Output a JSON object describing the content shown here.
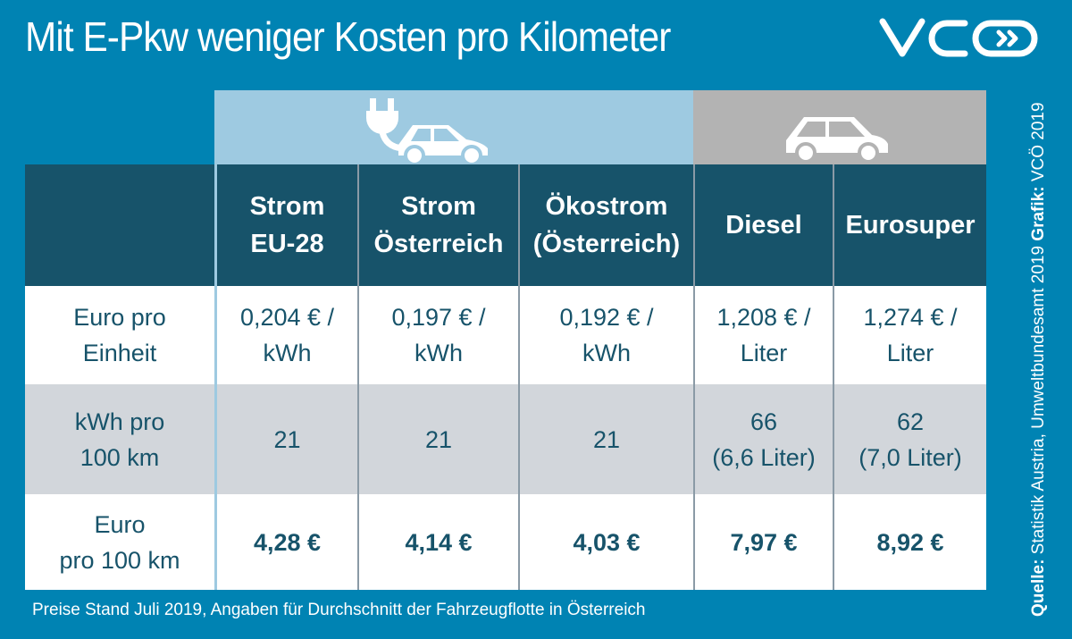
{
  "title": "Mit E-Pkw weniger Kosten pro Kilometer",
  "logo_text": "VCÖ",
  "icons": {
    "electric": "electric-car-plug-icon",
    "fuel": "car-icon"
  },
  "colors": {
    "background": "#0083b3",
    "header": "#17536a",
    "electric_group": "#9ecae1",
    "fuel_group": "#b3b3b3",
    "row_alt": "#d2d6db"
  },
  "chart_data": {
    "type": "table",
    "columns": [
      "",
      "Strom\nEU-28",
      "Strom\nÖsterreich",
      "Ökostrom\n(Österreich)",
      "Diesel",
      "Eurosuper"
    ],
    "groups": [
      {
        "type": "electric",
        "columns": [
          "Strom EU-28",
          "Strom Österreich",
          "Ökostrom (Österreich)"
        ]
      },
      {
        "type": "fuel",
        "columns": [
          "Diesel",
          "Eurosuper"
        ]
      }
    ],
    "rows": [
      [
        "Euro pro\nEinheit",
        "0,204 € /\nkWh",
        "0,197 € /\nkWh",
        "0,192 € /\nkWh",
        "1,208 € /\nLiter",
        "1,274 € /\nLiter"
      ],
      [
        "kWh pro\n100 km",
        "21",
        "21",
        "21",
        "66\n(6,6 Liter)",
        "62\n(7,0 Liter)"
      ],
      [
        "Euro\npro 100 km",
        "4,28 €",
        "4,14 €",
        "4,03 €",
        "7,97 €",
        "8,92 €"
      ]
    ]
  },
  "footer": "Preise Stand Juli 2019, Angaben für Durchschnitt der Fahrzeugflotte in Österreich",
  "source": {
    "label": "Quelle:",
    "text": " Statistik Austria, Umweltbundesamt 2019 ",
    "graphic_label": "Grafik:",
    "graphic_text": " VCÖ 2019"
  }
}
